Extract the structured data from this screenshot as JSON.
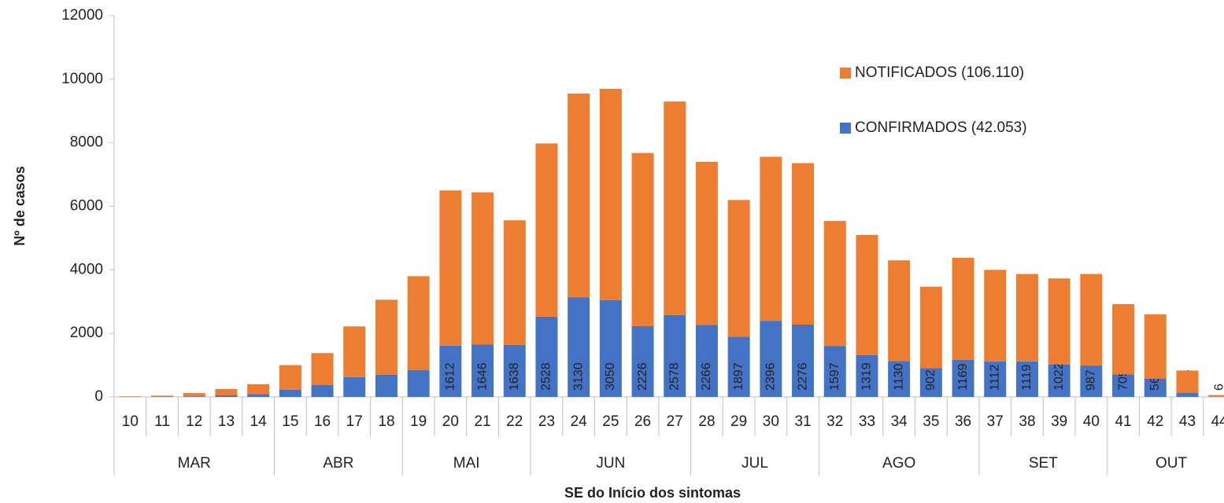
{
  "chart_data": {
    "type": "stacked_bar",
    "x_label": "SE do Início dos sintomas",
    "y_label": "Nº de casos",
    "categories": [
      "10",
      "11",
      "12",
      "13",
      "14",
      "15",
      "16",
      "17",
      "18",
      "19",
      "20",
      "21",
      "22",
      "23",
      "24",
      "25",
      "26",
      "27",
      "28",
      "29",
      "30",
      "31",
      "32",
      "33",
      "34",
      "35",
      "36",
      "37",
      "38",
      "39",
      "40",
      "41",
      "42",
      "43",
      "44"
    ],
    "months": [
      "MAR",
      "MAR",
      "MAR",
      "MAR",
      "MAR",
      "ABR",
      "ABR",
      "ABR",
      "ABR",
      "MAI",
      "MAI",
      "MAI",
      "MAI",
      "JUN",
      "JUN",
      "JUN",
      "JUN",
      "JUN",
      "JUL",
      "JUL",
      "JUL",
      "JUL",
      "AGO",
      "AGO",
      "AGO",
      "AGO",
      "AGO",
      "SET",
      "SET",
      "SET",
      "SET",
      "OUT",
      "OUT",
      "OUT",
      "OUT"
    ],
    "series": [
      {
        "name": "CONFIRMADOS (42.053)",
        "color": "#4472c4",
        "values": [
          5,
          10,
          20,
          50,
          90,
          230,
          380,
          620,
          700,
          850,
          1612,
          1646,
          1638,
          2528,
          3130,
          3050,
          2226,
          2578,
          2266,
          1897,
          2396,
          2276,
          1597,
          1319,
          1130,
          902,
          1169,
          1112,
          1119,
          1022,
          987,
          709,
          569,
          133,
          6
        ],
        "value_labels": [
          null,
          null,
          null,
          null,
          null,
          null,
          null,
          null,
          null,
          null,
          "1612",
          "1646",
          "1638",
          "2528",
          "3130",
          "3050",
          "2226",
          "2578",
          "2266",
          "1897",
          "2396",
          "2276",
          "1597",
          "1319",
          "1130",
          "902",
          "1169",
          "1112",
          "1119",
          "1022",
          "987",
          "709",
          "569",
          "133",
          "6"
        ]
      },
      {
        "name": "NOTIFICADOS (106.110)",
        "color": "#ed7d31",
        "values": [
          15,
          30,
          100,
          200,
          310,
          770,
          1000,
          1600,
          2360,
          2950,
          4888,
          4794,
          3922,
          5452,
          6420,
          6650,
          5454,
          6722,
          5134,
          4303,
          5164,
          5084,
          3943,
          3781,
          3170,
          2568,
          3211,
          2888,
          2751,
          2708,
          2883,
          2211,
          2031,
          697,
          54
        ]
      }
    ],
    "ylim": [
      0,
      12000
    ],
    "yticks": [
      0,
      2000,
      4000,
      6000,
      8000,
      10000,
      12000
    ],
    "grid": false,
    "legend": "upper right"
  }
}
